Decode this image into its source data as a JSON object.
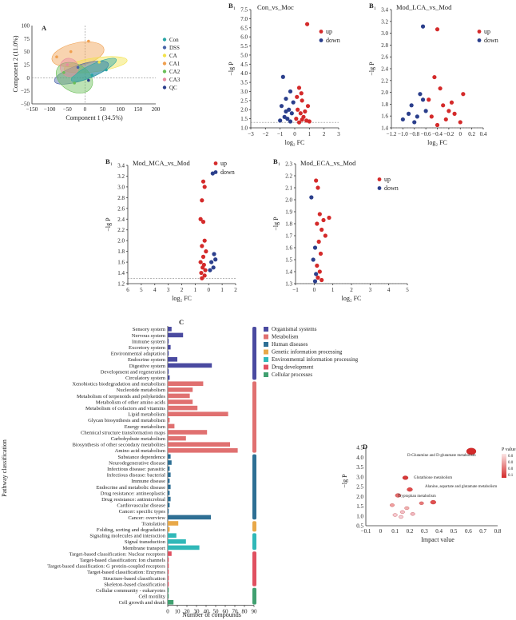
{
  "panelA": {
    "letter": "A",
    "xlabel": "Component 1 (34.5%)",
    "ylabel": "Component 2 (11.0%)",
    "xticks": [
      "−150",
      "−100",
      "−50",
      "0",
      "50",
      "100",
      "150",
      "200"
    ],
    "yticks": [
      "100",
      "75",
      "50",
      "25",
      "0",
      "−25",
      "−50"
    ],
    "legend": [
      {
        "label": "Con",
        "color": "#2aa6a6",
        "shape": "circle"
      },
      {
        "label": "DSS",
        "color": "#4a64a8",
        "shape": "triangle"
      },
      {
        "label": "CA",
        "color": "#f2e24c",
        "shape": "square"
      },
      {
        "label": "CA1",
        "color": "#f0a050",
        "shape": "square"
      },
      {
        "label": "CA2",
        "color": "#6bbf59",
        "shape": "diamond"
      },
      {
        "label": "CA3",
        "color": "#e88aa0",
        "shape": "diamond"
      },
      {
        "label": "QC",
        "color": "#2b3f8c",
        "shape": "circle"
      }
    ]
  },
  "volcanoes": [
    {
      "id": "B1a",
      "letter": "B",
      "sub": "1",
      "title": "Con_vs_Moc",
      "xlabel": "log₂ FC",
      "ylabel": "−lg P",
      "xticks": [
        "−3",
        "−2",
        "−1",
        "0",
        "1",
        "2",
        "3"
      ],
      "yticks": [
        "7.5",
        "7.0",
        "6.5",
        "6.0",
        "5.5",
        "5.0",
        "4.5",
        "4.0",
        "3.5",
        "3.0",
        "2.5",
        "2.0",
        "1.5",
        "1.0"
      ],
      "legend": [
        {
          "label": "up",
          "color": "#d42a2a"
        },
        {
          "label": "down",
          "color": "#2b3f8c"
        }
      ]
    },
    {
      "id": "B1b",
      "letter": "B",
      "sub": "1",
      "title": "Mod_LCA_vs_Mod",
      "xlabel": "log₂ FC",
      "ylabel": "−lg P",
      "xticks": [
        "−1.2",
        "−1.0",
        "−0.8",
        "−0.6",
        "−0.4",
        "−0.2",
        "0",
        "0.2",
        "0.4"
      ],
      "yticks": [
        "3.4",
        "3.2",
        "3.0",
        "2.8",
        "2.6",
        "2.4",
        "2.2",
        "2.0",
        "1.8",
        "1.6",
        "1.4"
      ],
      "legend": [
        {
          "label": "up",
          "color": "#d42a2a"
        },
        {
          "label": "down",
          "color": "#2b3f8c"
        }
      ]
    },
    {
      "id": "B1c",
      "letter": "B",
      "sub": "1",
      "title": "Mod_MCA_vs_Mod",
      "xlabel": "log₂ FC",
      "ylabel": "−lg P",
      "xticks": [
        "6",
        "5",
        "4",
        "3",
        "2",
        "1",
        "0",
        "1",
        "2"
      ],
      "yticks": [
        "3.4",
        "3.2",
        "3.0",
        "2.8",
        "2.6",
        "2.4",
        "2.2",
        "2.0",
        "1.8",
        "1.6",
        "1.4",
        "1.2"
      ],
      "legend": [
        {
          "label": "up",
          "color": "#d42a2a"
        },
        {
          "label": "down",
          "color": "#2b3f8c"
        }
      ]
    },
    {
      "id": "B1d",
      "letter": "B",
      "sub": "1",
      "title": "Mod_ECA_vs_Mod",
      "xlabel": "log₂ FC",
      "ylabel": "−lg P",
      "xticks": [
        "−1",
        "0",
        "1",
        "2",
        "3",
        "4",
        "5"
      ],
      "yticks": [
        "2.3",
        "2.2",
        "2.1",
        "2.0",
        "1.9",
        "1.8",
        "1.7",
        "1.6",
        "1.5",
        "1.4",
        "1.3"
      ],
      "legend": [
        {
          "label": "up",
          "color": "#d42a2a"
        },
        {
          "label": "down",
          "color": "#2b3f8c"
        }
      ]
    }
  ],
  "panelC": {
    "letter": "C",
    "xlabel": "Number of compounds",
    "ylabel": "Pathway classification",
    "xticks": [
      "0",
      "10",
      "20",
      "30",
      "40",
      "50",
      "60",
      "70",
      "80",
      "90"
    ],
    "xlim": [
      0,
      90
    ],
    "legend": [
      {
        "label": "Organismal systems",
        "color": "#4a4aa0"
      },
      {
        "label": "Metabolism",
        "color": "#e07070"
      },
      {
        "label": "Human diseases",
        "color": "#2e6f94"
      },
      {
        "label": "Genetic information processing",
        "color": "#e8a848"
      },
      {
        "label": "Environmental information processing",
        "color": "#30b8b8"
      },
      {
        "label": "Drug development",
        "color": "#e05060"
      },
      {
        "label": "Cellular processes",
        "color": "#40a070"
      }
    ]
  },
  "panelD": {
    "letter": "D",
    "xlabel": "Impact value",
    "ylabel": "−lg P",
    "xticks": [
      "−0.1",
      "0",
      "0.1",
      "0.2",
      "0.3",
      "0.4",
      "0.5",
      "0.6",
      "0.7",
      "0.8"
    ],
    "yticks": [
      "4.5",
      "4.0",
      "3.5",
      "3.0",
      "2.5",
      "2.0",
      "1.5",
      "1.0",
      "0.5"
    ],
    "annotations": [
      "D-Glutamine and D-glutamate metabolism",
      "Glutathione metabolism",
      "Alanine, aspartate and glutamate metabolism",
      "Tryptophan metabolism"
    ],
    "colorbar_label": "P value",
    "colorbar_ticks": [
      "0.0",
      "0.0",
      "0.0",
      "0.1"
    ]
  },
  "chart_data": [
    {
      "type": "scatter",
      "panel": "A",
      "xlim": [
        -150,
        200
      ],
      "ylim": [
        -50,
        100
      ]
    },
    {
      "type": "scatter",
      "panel": "B1-Con_vs_Moc",
      "xlim": [
        -3,
        3
      ],
      "ylim": [
        1,
        7.5
      ],
      "series": [
        {
          "name": "up",
          "points": [
            [
              0.85,
              6.7
            ],
            [
              0.3,
              3.2
            ],
            [
              0.5,
              2.5
            ],
            [
              0.9,
              2.2
            ],
            [
              0.2,
              2.0
            ],
            [
              0.4,
              1.8
            ],
            [
              0.6,
              1.6
            ],
            [
              0.1,
              1.5
            ],
            [
              0.8,
              1.4
            ],
            [
              1.0,
              1.35
            ],
            [
              0.3,
              1.3
            ],
            [
              0.5,
              1.45
            ],
            [
              0.7,
              1.9
            ],
            [
              0.15,
              2.7
            ],
            [
              0.45,
              2.9
            ]
          ]
        },
        {
          "name": "down",
          "points": [
            [
              -0.8,
              3.8
            ],
            [
              -0.3,
              3.0
            ],
            [
              -0.6,
              2.6
            ],
            [
              -0.9,
              2.2
            ],
            [
              -0.4,
              2.0
            ],
            [
              -0.2,
              1.8
            ],
            [
              -0.7,
              1.6
            ],
            [
              -0.5,
              1.5
            ],
            [
              -1.0,
              1.4
            ],
            [
              -0.3,
              1.35
            ],
            [
              -0.1,
              2.4
            ],
            [
              -0.6,
              1.9
            ]
          ]
        }
      ]
    },
    {
      "type": "scatter",
      "panel": "B1-Mod_LCA_vs_Mod",
      "xlim": [
        -1.2,
        0.4
      ],
      "ylim": [
        1.3,
        3.4
      ],
      "series": [
        {
          "name": "up",
          "points": [
            [
              -0.4,
              3.05
            ],
            [
              -0.45,
              2.2
            ],
            [
              -0.35,
              2.0
            ],
            [
              0.05,
              1.9
            ],
            [
              -0.3,
              1.7
            ],
            [
              -0.2,
              1.6
            ],
            [
              -0.1,
              1.55
            ],
            [
              -0.5,
              1.5
            ],
            [
              -0.25,
              1.45
            ],
            [
              0.0,
              1.4
            ],
            [
              -0.4,
              1.35
            ],
            [
              -0.15,
              1.75
            ],
            [
              -0.55,
              1.8
            ]
          ]
        },
        {
          "name": "down",
          "points": [
            [
              -0.65,
              3.1
            ],
            [
              -0.7,
              1.9
            ],
            [
              -0.85,
              1.7
            ],
            [
              -0.9,
              1.55
            ],
            [
              -0.75,
              1.5
            ],
            [
              -1.0,
              1.45
            ],
            [
              -0.6,
              1.6
            ],
            [
              -0.8,
              1.4
            ],
            [
              -0.65,
              1.8
            ]
          ]
        }
      ]
    },
    {
      "type": "scatter",
      "panel": "B1-Mod_MCA_vs_Mod",
      "xlim": [
        -6,
        2
      ],
      "ylim": [
        1.2,
        3.4
      ],
      "series": [
        {
          "name": "up",
          "points": [
            [
              0.4,
              3.1
            ],
            [
              0.3,
              3.0
            ],
            [
              0.5,
              2.75
            ],
            [
              0.6,
              2.4
            ],
            [
              0.4,
              2.35
            ],
            [
              0.3,
              2.0
            ],
            [
              0.5,
              1.9
            ],
            [
              0.2,
              1.8
            ],
            [
              0.6,
              1.6
            ],
            [
              0.35,
              1.55
            ],
            [
              0.45,
              1.5
            ],
            [
              0.25,
              1.45
            ],
            [
              0.55,
              1.4
            ],
            [
              0.3,
              1.35
            ],
            [
              0.5,
              1.3
            ],
            [
              0.4,
              1.7
            ]
          ]
        },
        {
          "name": "down",
          "points": [
            [
              -0.3,
              3.25
            ],
            [
              -0.4,
              1.75
            ],
            [
              -0.5,
              1.65
            ],
            [
              -0.2,
              1.6
            ],
            [
              -0.35,
              1.5
            ],
            [
              -0.1,
              1.45
            ]
          ]
        }
      ]
    },
    {
      "type": "scatter",
      "panel": "B1-Mod_ECA_vs_Mod",
      "xlim": [
        -1,
        5
      ],
      "ylim": [
        1.3,
        2.3
      ],
      "series": [
        {
          "name": "up",
          "points": [
            [
              0.1,
              2.16
            ],
            [
              0.2,
              2.1
            ],
            [
              0.3,
              1.88
            ],
            [
              0.8,
              1.85
            ],
            [
              0.5,
              1.83
            ],
            [
              0.15,
              1.8
            ],
            [
              0.4,
              1.75
            ],
            [
              0.6,
              1.7
            ],
            [
              0.25,
              1.65
            ],
            [
              0.35,
              1.55
            ],
            [
              0.15,
              1.45
            ],
            [
              0.3,
              1.4
            ],
            [
              0.2,
              1.35
            ],
            [
              0.4,
              1.33
            ]
          ]
        },
        {
          "name": "down",
          "points": [
            [
              -0.15,
              2.02
            ],
            [
              0.05,
              1.6
            ],
            [
              -0.05,
              1.5
            ],
            [
              0.1,
              1.38
            ],
            [
              0.05,
              1.32
            ]
          ]
        }
      ]
    },
    {
      "type": "bar",
      "panel": "C",
      "orientation": "horizontal",
      "xlim": [
        0,
        90
      ],
      "categories": [
        "Sensory system",
        "Nervous system",
        "Immune system",
        "Excretory system",
        "Environmental adaptation",
        "Endocrine system",
        "Digestive system",
        "Development and regeneration",
        "Circulatory system",
        "Xenobiotics biodegradation and metabolism",
        "Nucleotide metabolism",
        "Metabolism of terpenoids and polyketides",
        "Metabolism of other amino acids",
        "Metabolism of cofactors and vitamins",
        "Lipid metabolism",
        "Glycan biosynthesis and metabolism",
        "Energy metabolism",
        "Chemical structure transformation maps",
        "Carbohydrate metabolism",
        "Biosynthesis of other secondary metabolites",
        "Amino acid metabolism",
        "Substance dependence",
        "Neurodegenerative disease",
        "Infectious disease: parasitic",
        "Infectious disease: bacterial",
        "Immune disease",
        "Endocrine and metabolic disease",
        "Drug resistance: antineoplastic",
        "Drug resistance: antimicrobial",
        "Cardiovascular disease",
        "Cancer: specific types",
        "Cancer: overview",
        "Translation",
        "Folding, sorting and degradation",
        "Signaling molecules and interaction",
        "Signal transduction",
        "Membrane transport",
        "Target-based classification: Nuclear receptors",
        "Target-based classification: Ion channels",
        "Target-based classification: G protein-coupled receptors",
        "Target-based classification: Enzymes",
        "Structure-based classification",
        "Skeleton-based classification",
        "Cellular community - eukaryotes",
        "Cell motility",
        "Cell growth and death"
      ],
      "values": [
        4,
        16,
        1,
        3,
        1,
        10,
        46,
        1,
        2,
        37,
        26,
        23,
        26,
        31,
        63,
        2,
        7,
        41,
        19,
        65,
        73,
        3,
        4,
        2,
        3,
        2,
        3,
        2,
        3,
        2,
        1,
        45,
        11,
        2,
        9,
        19,
        33,
        4,
        1,
        1,
        1,
        1,
        1,
        1,
        1,
        6
      ],
      "groups": [
        "Organismal systems",
        "Organismal systems",
        "Organismal systems",
        "Organismal systems",
        "Organismal systems",
        "Organismal systems",
        "Organismal systems",
        "Organismal systems",
        "Organismal systems",
        "Metabolism",
        "Metabolism",
        "Metabolism",
        "Metabolism",
        "Metabolism",
        "Metabolism",
        "Metabolism",
        "Metabolism",
        "Metabolism",
        "Metabolism",
        "Metabolism",
        "Metabolism",
        "Human diseases",
        "Human diseases",
        "Human diseases",
        "Human diseases",
        "Human diseases",
        "Human diseases",
        "Human diseases",
        "Human diseases",
        "Human diseases",
        "Human diseases",
        "Human diseases",
        "Genetic information processing",
        "Genetic information processing",
        "Environmental information processing",
        "Environmental information processing",
        "Environmental information processing",
        "Drug development",
        "Drug development",
        "Drug development",
        "Drug development",
        "Drug development",
        "Drug development",
        "Cellular processes",
        "Cellular processes",
        "Cellular processes"
      ]
    },
    {
      "type": "scatter",
      "panel": "D",
      "xlim": [
        -0.1,
        0.8
      ],
      "ylim": [
        0.5,
        4.5
      ],
      "points": [
        [
          0.62,
          4.3
        ],
        [
          0.17,
          2.95
        ],
        [
          0.2,
          2.35
        ],
        [
          0.12,
          2.05
        ],
        [
          0.36,
          1.7
        ],
        [
          0.28,
          1.65
        ],
        [
          0.08,
          1.55
        ],
        [
          0.18,
          1.4
        ],
        [
          0.15,
          1.2
        ],
        [
          0.1,
          1.05
        ],
        [
          0.14,
          0.95
        ],
        [
          0.22,
          1.1
        ]
      ]
    }
  ]
}
